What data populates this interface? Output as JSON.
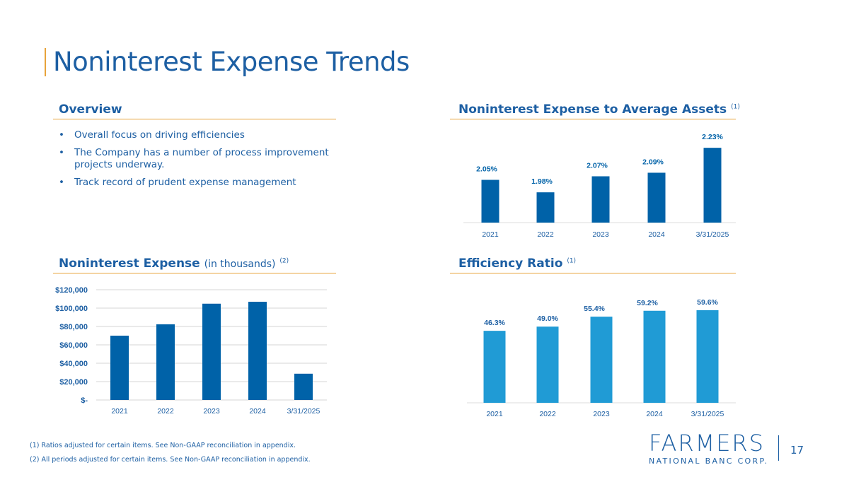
{
  "title": "Noninterest Expense Trends",
  "overview": {
    "heading": "Overview",
    "bullets": [
      "Overall focus on driving efficiencies",
      "The Company has a number of process improvement projects underway.",
      "Track record of prudent expense management"
    ]
  },
  "sections": {
    "assets_heading": "Noninterest Expense to Average Assets",
    "assets_note": "(1)",
    "expense_heading": "Noninterest Expense",
    "expense_sub": "(in thousands)",
    "expense_note": "(2)",
    "eff_heading": "Efficiency Ratio",
    "eff_note": "(1)"
  },
  "chart_data": [
    {
      "type": "bar",
      "title": "Noninterest Expense to Average Assets",
      "categories": [
        "2021",
        "2022",
        "2023",
        "2024",
        "3/31/2025"
      ],
      "values": [
        2.05,
        1.98,
        2.07,
        2.09,
        2.23
      ],
      "labels": [
        "2.05%",
        "1.98%",
        "2.07%",
        "2.09%",
        "2.23%"
      ],
      "color": "#0062a8"
    },
    {
      "type": "bar",
      "title": "Noninterest Expense (in thousands)",
      "categories": [
        "2021",
        "2022",
        "2023",
        "2024",
        "3/31/2025"
      ],
      "values": [
        70000,
        82400,
        104800,
        106900,
        28600
      ],
      "ylim": [
        0,
        120000
      ],
      "yticks": [
        "$120,000",
        "$100,000",
        "$80,000",
        "$60,000",
        "$40,000",
        "$20,000",
        "$-"
      ],
      "grid": true,
      "color": "#0062a8"
    },
    {
      "type": "bar",
      "title": "Efficiency Ratio",
      "categories": [
        "2021",
        "2022",
        "2023",
        "2024",
        "3/31/2025"
      ],
      "values": [
        46.3,
        49.0,
        55.4,
        59.2,
        59.6
      ],
      "labels": [
        "46.3%",
        "49.0%",
        "55.4%",
        "59.2%",
        "59.6%"
      ],
      "color": "#209bd5"
    }
  ],
  "footnotes": [
    "(1) Ratios adjusted for certain items. See Non-GAAP reconciliation in appendix.",
    "(2) All periods adjusted for certain items. See Non-GAAP reconciliation in appendix."
  ],
  "logo": {
    "name": "FARMERS",
    "sub": "NATIONAL BANC CORP."
  },
  "page_number": "17"
}
